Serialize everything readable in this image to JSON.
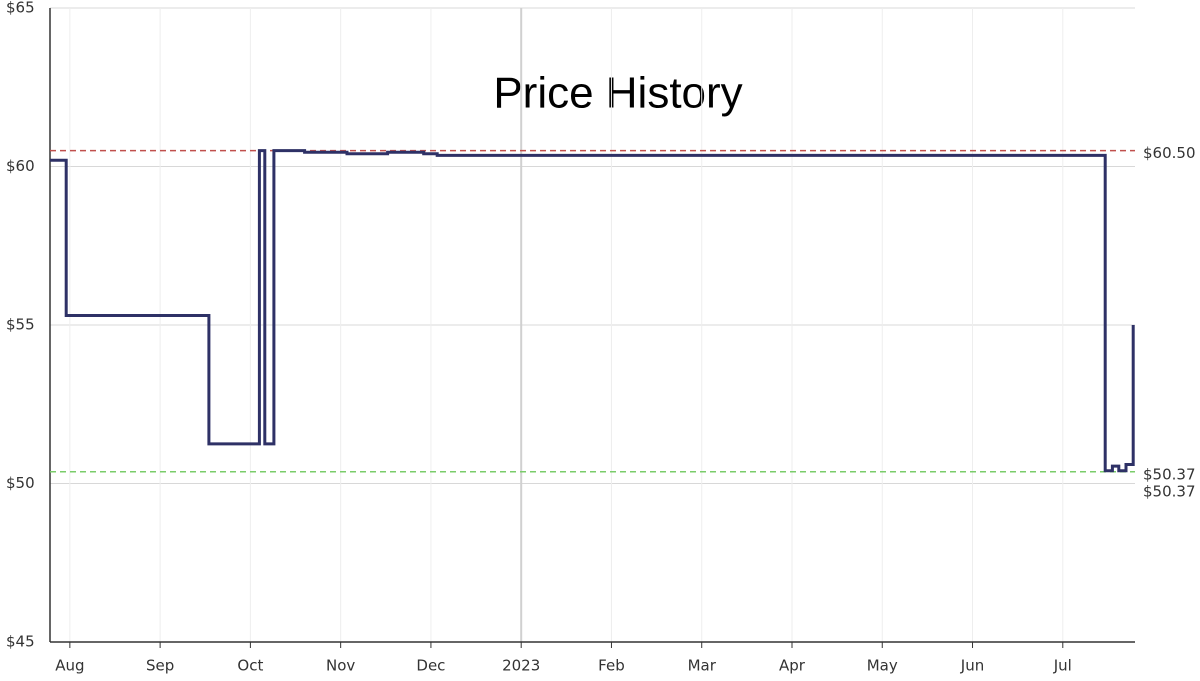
{
  "chart_data": {
    "type": "line",
    "title": "Price History",
    "xlim": [
      7.78,
      19.8
    ],
    "xticks": [
      {
        "value": 8,
        "label": "Aug"
      },
      {
        "value": 9,
        "label": "Sep"
      },
      {
        "value": 10,
        "label": "Oct"
      },
      {
        "value": 11,
        "label": "Nov"
      },
      {
        "value": 12,
        "label": "Dec"
      },
      {
        "value": 13,
        "label": "2023"
      },
      {
        "value": 14,
        "label": "Feb"
      },
      {
        "value": 15,
        "label": "Mar"
      },
      {
        "value": 16,
        "label": "Apr"
      },
      {
        "value": 17,
        "label": "May"
      },
      {
        "value": 18,
        "label": "Jun"
      },
      {
        "value": 19,
        "label": "Jul"
      }
    ],
    "ylim": [
      45,
      65
    ],
    "yticks": [
      {
        "value": 45,
        "label": "$45"
      },
      {
        "value": 50,
        "label": "$50"
      },
      {
        "value": 55,
        "label": "$55"
      },
      {
        "value": 60,
        "label": "$60"
      },
      {
        "value": 65,
        "label": "$65"
      }
    ],
    "grid": true,
    "series": [
      {
        "color": "#2e3166",
        "x": [
          7.78,
          7.96,
          7.96,
          9.54,
          9.54,
          10.1,
          10.1,
          10.16,
          10.16,
          10.26,
          10.26,
          10.6,
          10.6,
          11.07,
          11.07,
          11.52,
          11.52,
          11.92,
          11.92,
          12.07,
          12.07,
          19.47,
          19.47,
          19.55,
          19.55,
          19.62,
          19.62,
          19.7,
          19.7,
          19.78,
          19.78
        ],
        "values": [
          60.2,
          60.2,
          55.3,
          55.3,
          51.25,
          51.25,
          60.5,
          60.5,
          51.25,
          51.25,
          60.5,
          60.5,
          60.45,
          60.45,
          60.4,
          60.4,
          60.45,
          60.45,
          60.4,
          60.4,
          60.35,
          60.35,
          50.4,
          50.4,
          50.55,
          50.55,
          50.4,
          50.4,
          50.6,
          50.6,
          55.0
        ]
      }
    ],
    "reference_lines": [
      {
        "value": 60.5,
        "label": "$60.50",
        "color": "#c0504d"
      },
      {
        "value": 50.37,
        "label": "$50.37",
        "color": "#7acc6a"
      }
    ],
    "current_price": {
      "value": 50.37,
      "label": "$50.37",
      "color": "#2e3166"
    }
  }
}
